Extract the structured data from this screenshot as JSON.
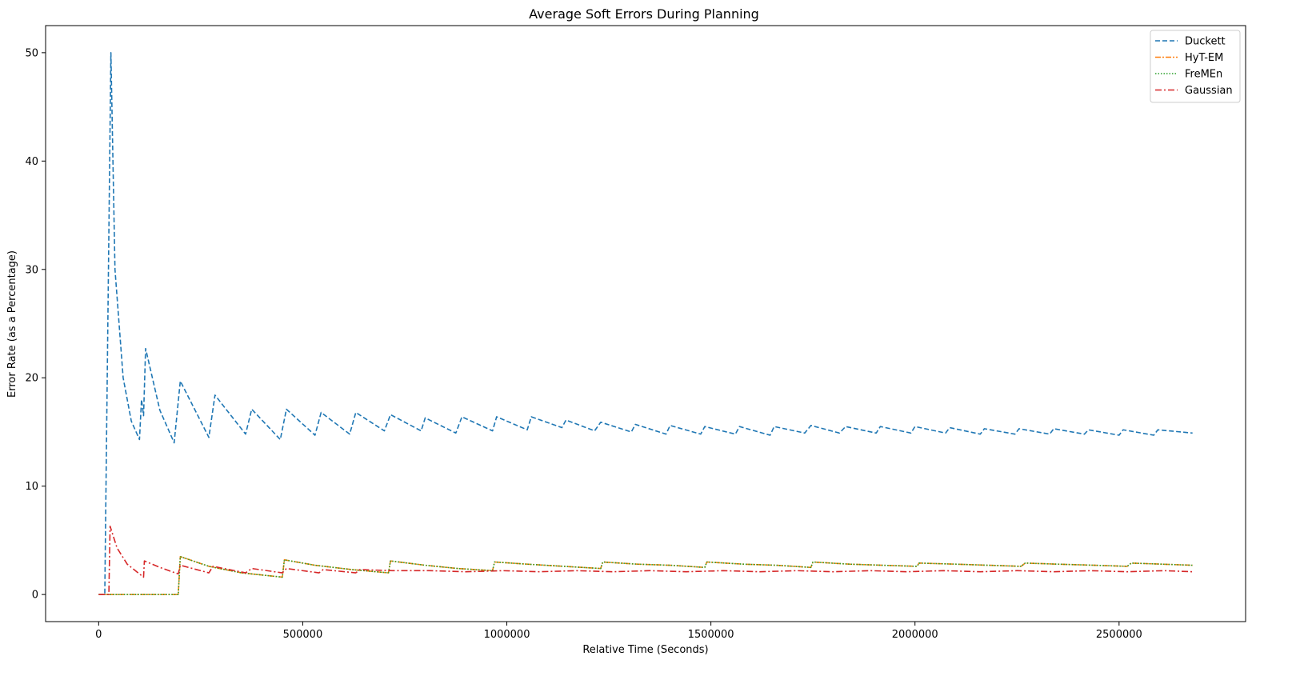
{
  "chart_data": {
    "type": "line",
    "title": "Average Soft Errors During Planning",
    "xlabel": "Relative Time (Seconds)",
    "ylabel": "Error Rate (as a Percentage)",
    "xlim": [
      -130000,
      2810000
    ],
    "ylim": [
      -2.5,
      52.5
    ],
    "xticks": [
      0,
      500000,
      1000000,
      1500000,
      2000000,
      2500000
    ],
    "xtick_labels": [
      "0",
      "500000",
      "1000000",
      "1500000",
      "2000000",
      "2500000"
    ],
    "yticks": [
      0,
      10,
      20,
      30,
      40,
      50
    ],
    "ytick_labels": [
      "0",
      "10",
      "20",
      "30",
      "40",
      "50"
    ],
    "grid": false,
    "legend_position": "top-right",
    "series": [
      {
        "name": "Duckett",
        "color": "#1f77b4",
        "dash": "6,3",
        "x": [
          0,
          15000,
          15000,
          30000,
          40000,
          60000,
          80000,
          100000,
          105000,
          110000,
          115000,
          150000,
          185000,
          200000,
          270000,
          285000,
          360000,
          375000,
          445000,
          460000,
          530000,
          545000,
          615000,
          630000,
          700000,
          715000,
          790000,
          800000,
          875000,
          890000,
          965000,
          975000,
          1050000,
          1060000,
          1135000,
          1145000,
          1215000,
          1230000,
          1305000,
          1315000,
          1390000,
          1400000,
          1475000,
          1485000,
          1560000,
          1570000,
          1645000,
          1655000,
          1730000,
          1745000,
          1815000,
          1830000,
          1905000,
          1915000,
          1990000,
          2000000,
          2075000,
          2085000,
          2160000,
          2170000,
          2245000,
          2255000,
          2330000,
          2340000,
          2415000,
          2425000,
          2500000,
          2510000,
          2585000,
          2595000,
          2680000
        ],
        "y": [
          0,
          0,
          0,
          50,
          30,
          20,
          16,
          14.3,
          18,
          16.5,
          22.7,
          17,
          14,
          19.7,
          14.5,
          18.4,
          14.8,
          17.1,
          14.3,
          17.1,
          14.7,
          16.8,
          14.8,
          16.8,
          15.1,
          16.6,
          15.1,
          16.3,
          14.9,
          16.4,
          15.1,
          16.4,
          15.2,
          16.4,
          15.4,
          16.1,
          15.1,
          15.9,
          15,
          15.7,
          14.8,
          15.6,
          14.8,
          15.5,
          14.8,
          15.5,
          14.7,
          15.5,
          14.9,
          15.6,
          14.9,
          15.5,
          14.9,
          15.5,
          14.9,
          15.5,
          14.9,
          15.4,
          14.8,
          15.3,
          14.8,
          15.3,
          14.8,
          15.3,
          14.8,
          15.2,
          14.7,
          15.2,
          14.7,
          15.2,
          14.9
        ]
      },
      {
        "name": "HyT-EM",
        "color": "#ff7f0e",
        "dash": "7,2,2,2",
        "x": [
          0,
          195000,
          195000,
          200000,
          270000,
          350000,
          450000,
          455000,
          530000,
          620000,
          710000,
          715000,
          800000,
          880000,
          965000,
          970000,
          1050000,
          1140000,
          1230000,
          1235000,
          1320000,
          1400000,
          1485000,
          1490000,
          1580000,
          1660000,
          1745000,
          1750000,
          1840000,
          1920000,
          2005000,
          2010000,
          2100000,
          2180000,
          2260000,
          2270000,
          2350000,
          2440000,
          2520000,
          2530000,
          2680000
        ],
        "y": [
          0,
          0,
          0,
          3.5,
          2.6,
          2.0,
          1.6,
          3.2,
          2.7,
          2.3,
          2.0,
          3.1,
          2.7,
          2.4,
          2.2,
          3.0,
          2.8,
          2.6,
          2.4,
          3.0,
          2.8,
          2.7,
          2.5,
          3.0,
          2.8,
          2.7,
          2.5,
          3.0,
          2.8,
          2.7,
          2.6,
          2.9,
          2.8,
          2.7,
          2.6,
          2.9,
          2.8,
          2.7,
          2.6,
          2.9,
          2.7
        ]
      },
      {
        "name": "FreMEn",
        "color": "#2ca02c",
        "dash": "1.5,2",
        "x": [
          0,
          195000,
          195000,
          200000,
          270000,
          350000,
          450000,
          455000,
          530000,
          620000,
          710000,
          715000,
          800000,
          880000,
          965000,
          970000,
          1050000,
          1140000,
          1230000,
          1235000,
          1320000,
          1400000,
          1485000,
          1490000,
          1580000,
          1660000,
          1745000,
          1750000,
          1840000,
          1920000,
          2005000,
          2010000,
          2100000,
          2180000,
          2260000,
          2270000,
          2350000,
          2440000,
          2520000,
          2530000,
          2680000
        ],
        "y": [
          0,
          0,
          0,
          3.5,
          2.6,
          2.0,
          1.6,
          3.2,
          2.7,
          2.3,
          2.0,
          3.1,
          2.7,
          2.4,
          2.2,
          3.0,
          2.8,
          2.6,
          2.4,
          3.0,
          2.8,
          2.7,
          2.5,
          3.0,
          2.8,
          2.7,
          2.5,
          3.0,
          2.8,
          2.7,
          2.6,
          2.9,
          2.8,
          2.7,
          2.6,
          2.9,
          2.8,
          2.7,
          2.6,
          2.9,
          2.7
        ]
      },
      {
        "name": "Gaussian",
        "color": "#d62728",
        "dash": "8,3,2,3",
        "x": [
          0,
          25000,
          28000,
          45000,
          70000,
          110000,
          112000,
          150000,
          195000,
          200000,
          270000,
          280000,
          360000,
          375000,
          450000,
          460000,
          540000,
          550000,
          630000,
          640000,
          720000,
          810000,
          900000,
          990000,
          1080000,
          1170000,
          1260000,
          1350000,
          1440000,
          1530000,
          1620000,
          1710000,
          1800000,
          1890000,
          1980000,
          2070000,
          2160000,
          2250000,
          2340000,
          2430000,
          2520000,
          2610000,
          2680000
        ],
        "y": [
          0,
          0,
          6.3,
          4.3,
          2.8,
          1.6,
          3.1,
          2.5,
          1.9,
          2.7,
          2.0,
          2.6,
          2.0,
          2.4,
          2.0,
          2.4,
          2.0,
          2.3,
          2.0,
          2.3,
          2.2,
          2.2,
          2.1,
          2.2,
          2.1,
          2.2,
          2.1,
          2.2,
          2.1,
          2.2,
          2.1,
          2.2,
          2.1,
          2.2,
          2.1,
          2.2,
          2.1,
          2.2,
          2.1,
          2.2,
          2.1,
          2.2,
          2.1
        ]
      }
    ]
  }
}
